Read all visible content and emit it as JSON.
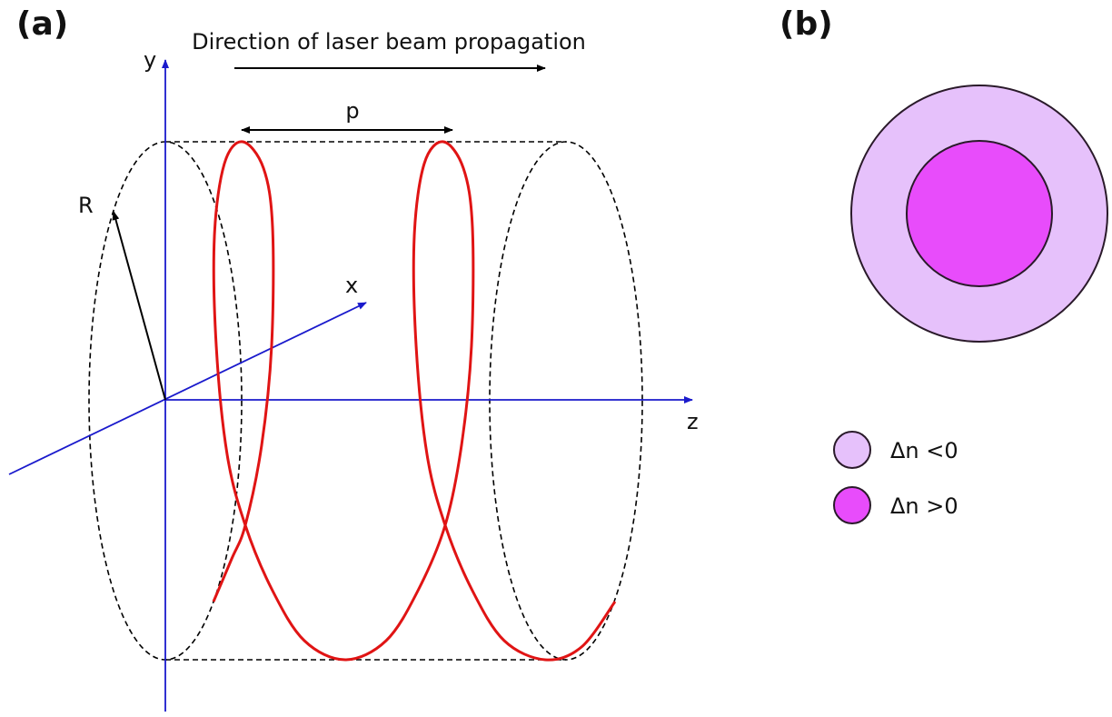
{
  "panels": {
    "a": {
      "label": "(a)",
      "title": "Direction of laser beam propagation",
      "axes": {
        "x": "x",
        "y": "y",
        "z": "z"
      },
      "radius": "R",
      "pitch": "p"
    },
    "b": {
      "label": "(b)",
      "legend": [
        {
          "label": "Δn <0"
        },
        {
          "label": "Δn >0"
        }
      ]
    }
  }
}
